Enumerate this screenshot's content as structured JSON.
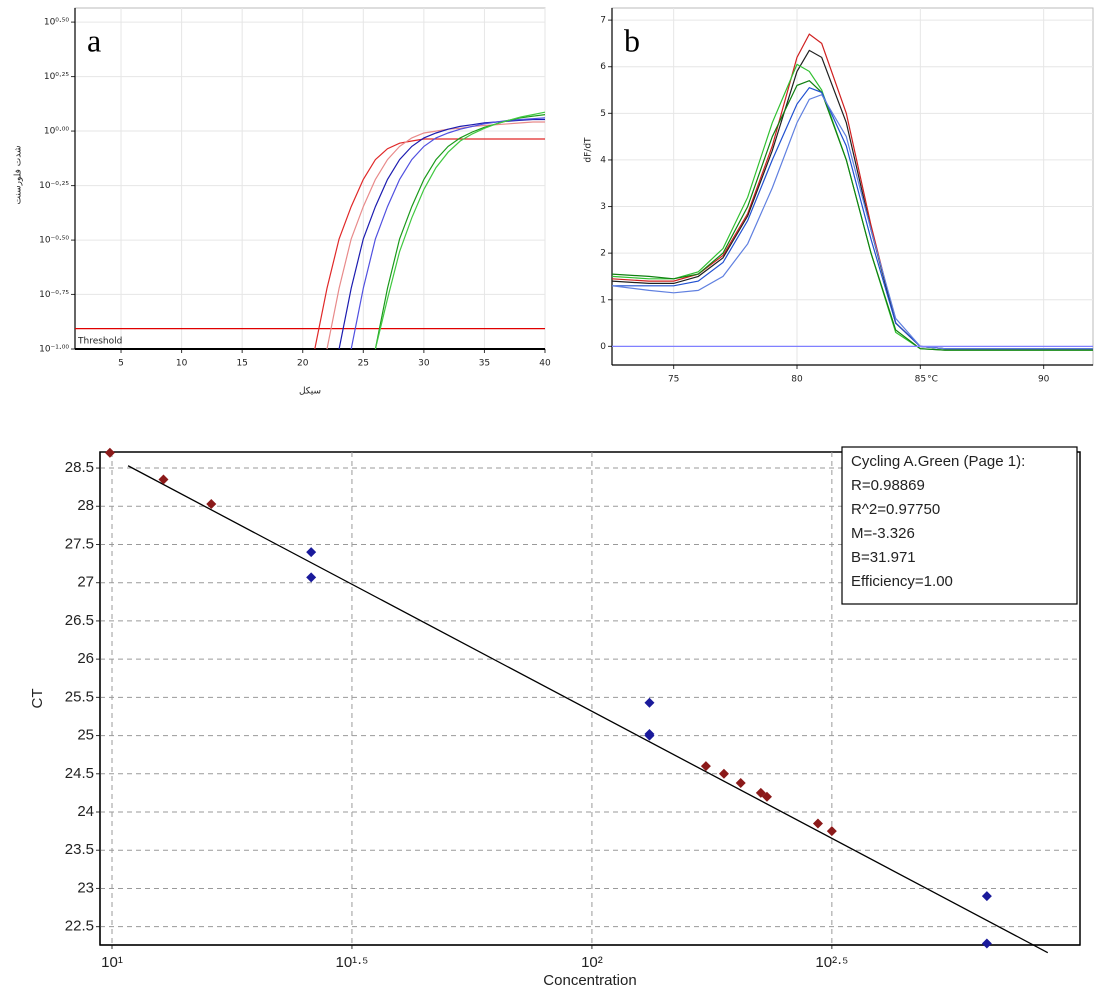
{
  "chart_data": [
    {
      "type": "line",
      "panel_label": "a",
      "xlabel": "سیکل",
      "ylabel": "شدت فلورسنت",
      "yscale": "log",
      "grid": true,
      "xlim": [
        1.2,
        40
      ],
      "xticks": [
        5,
        10,
        15,
        20,
        25,
        30,
        35,
        40
      ],
      "ylim": [
        0.1,
        3.67
      ],
      "yticks": [
        {
          "value": 0.1,
          "label": "10⁻¹·⁰⁰"
        },
        {
          "value": 0.178,
          "label": "10⁻⁰·⁷⁵"
        },
        {
          "value": 0.316,
          "label": "10⁻⁰·⁵⁰"
        },
        {
          "value": 0.562,
          "label": "10⁻⁰·²⁵"
        },
        {
          "value": 1,
          "label": "10⁰·⁰⁰"
        },
        {
          "value": 1.778,
          "label": "10⁰·²⁵"
        },
        {
          "value": 3.162,
          "label": "10⁰·⁵⁰"
        }
      ],
      "threshold": {
        "value": 0.124,
        "label": "Threshold",
        "color": "#e00000"
      },
      "x": [
        20,
        21,
        22,
        23,
        24,
        25,
        26,
        27,
        28,
        29,
        30,
        31,
        32,
        33,
        34,
        35,
        36,
        37,
        38,
        39,
        40
      ],
      "series": [
        {
          "color": "#e02828",
          "values": [
            null,
            0.1,
            0.19,
            0.32,
            0.45,
            0.6,
            0.74,
            0.83,
            0.88,
            0.9,
            0.92,
            0.92,
            0.92,
            0.92,
            0.92,
            0.92,
            0.92,
            0.92,
            0.92,
            0.92,
            0.92
          ]
        },
        {
          "color": "#e88a8a",
          "values": [
            null,
            null,
            0.1,
            0.19,
            0.32,
            0.45,
            0.6,
            0.74,
            0.85,
            0.93,
            0.98,
            1.0,
            1.02,
            1.03,
            1.05,
            1.06,
            1.07,
            1.08,
            1.09,
            1.1,
            1.1
          ]
        },
        {
          "color": "#1c1cb0",
          "values": [
            null,
            null,
            null,
            0.1,
            0.19,
            0.32,
            0.45,
            0.6,
            0.74,
            0.85,
            0.93,
            0.98,
            1.02,
            1.05,
            1.07,
            1.09,
            1.1,
            1.11,
            1.12,
            1.13,
            1.13
          ]
        },
        {
          "color": "#5050e0",
          "values": [
            null,
            null,
            null,
            null,
            0.1,
            0.19,
            0.32,
            0.45,
            0.6,
            0.74,
            0.85,
            0.93,
            0.98,
            1.02,
            1.05,
            1.08,
            1.1,
            1.12,
            1.13,
            1.14,
            1.15
          ]
        },
        {
          "color": "#1a9a1a",
          "values": [
            null,
            null,
            null,
            null,
            null,
            null,
            0.1,
            0.19,
            0.32,
            0.45,
            0.6,
            0.74,
            0.85,
            0.93,
            0.99,
            1.04,
            1.08,
            1.12,
            1.15,
            1.17,
            1.19
          ]
        },
        {
          "color": "#40c840",
          "values": [
            null,
            null,
            null,
            null,
            null,
            null,
            0.1,
            0.17,
            0.28,
            0.4,
            0.54,
            0.68,
            0.8,
            0.9,
            0.97,
            1.03,
            1.08,
            1.12,
            1.16,
            1.19,
            1.22
          ]
        }
      ]
    },
    {
      "type": "line",
      "panel_label": "b",
      "xlabel": "°C",
      "ylabel": "dF/dT",
      "grid": true,
      "xlim": [
        72.5,
        92
      ],
      "xticks": [
        75,
        80,
        85,
        90
      ],
      "ylim": [
        -0.4,
        7.26
      ],
      "yticks": [
        0,
        1,
        2,
        3,
        4,
        5,
        6,
        7
      ],
      "x": [
        72.5,
        74,
        75,
        76,
        77,
        78,
        79,
        80,
        80.5,
        81,
        82,
        83,
        84,
        85,
        86,
        88,
        90,
        92
      ],
      "series": [
        {
          "color": "#d02020",
          "values": [
            1.45,
            1.4,
            1.4,
            1.55,
            1.95,
            2.85,
            4.3,
            6.2,
            6.7,
            6.5,
            5.0,
            2.6,
            0.5,
            0.0,
            -0.05,
            -0.05,
            -0.05,
            -0.05
          ]
        },
        {
          "color": "#202020",
          "values": [
            1.4,
            1.35,
            1.35,
            1.5,
            1.9,
            2.8,
            4.2,
            5.9,
            6.35,
            6.2,
            4.8,
            2.5,
            0.5,
            0.0,
            -0.05,
            -0.05,
            -0.05,
            -0.05
          ]
        },
        {
          "color": "#30c030",
          "values": [
            1.5,
            1.45,
            1.45,
            1.6,
            2.1,
            3.2,
            4.8,
            6.05,
            5.9,
            5.5,
            4.0,
            2.0,
            0.3,
            -0.05,
            -0.08,
            -0.08,
            -0.08,
            -0.08
          ]
        },
        {
          "color": "#108010",
          "values": [
            1.55,
            1.5,
            1.45,
            1.55,
            2.0,
            3.0,
            4.5,
            5.6,
            5.7,
            5.45,
            4.0,
            2.0,
            0.35,
            -0.05,
            -0.08,
            -0.08,
            -0.08,
            -0.08
          ]
        },
        {
          "color": "#2050d0",
          "values": [
            1.3,
            1.3,
            1.3,
            1.4,
            1.8,
            2.7,
            4.0,
            5.2,
            5.55,
            5.45,
            4.3,
            2.3,
            0.5,
            0.0,
            -0.05,
            -0.05,
            -0.05,
            -0.05
          ]
        },
        {
          "color": "#6080e0",
          "values": [
            1.3,
            1.2,
            1.15,
            1.2,
            1.5,
            2.2,
            3.4,
            4.8,
            5.3,
            5.4,
            4.5,
            2.5,
            0.6,
            0.0,
            -0.05,
            -0.05,
            -0.05,
            -0.05
          ]
        },
        {
          "color": "#8080ff",
          "values": [
            0,
            0,
            0,
            0,
            0,
            0,
            0,
            0,
            0,
            0,
            0,
            0,
            0,
            0,
            0,
            0,
            0,
            0
          ]
        }
      ]
    },
    {
      "type": "scatter",
      "xlabel": "Concentration",
      "ylabel": "CT",
      "xscale": "log",
      "grid": true,
      "xlim": [
        9.44,
        1040
      ],
      "xticks": [
        {
          "value": 10,
          "label": "10¹"
        },
        {
          "value": 31.62,
          "label": "10¹·⁵"
        },
        {
          "value": 100,
          "label": "10²"
        },
        {
          "value": 316.2,
          "label": "10²·⁵"
        }
      ],
      "ylim": [
        22.26,
        28.71
      ],
      "yticks": [
        22.5,
        23,
        23.5,
        24,
        24.5,
        25,
        25.5,
        26,
        26.5,
        27,
        27.5,
        28,
        28.5
      ],
      "series": [
        {
          "color": "#8b1a1a",
          "x": [
            9.9,
            12.8,
            16.1,
            172.8,
            188.4,
            204.2,
            224.9,
            231.6,
            295.8,
            316.2
          ],
          "values": [
            28.7,
            28.35,
            28.03,
            24.6,
            24.5,
            24.38,
            24.25,
            24.2,
            23.85,
            23.75
          ]
        },
        {
          "color": "#1a1a9b",
          "x": [
            26.0,
            26.0,
            131.8,
            131.8,
            131.8,
            665.3,
            665.3
          ],
          "values": [
            27.4,
            27.07,
            25.43,
            25.02,
            25.0,
            22.9,
            22.28
          ]
        }
      ],
      "fit_line": {
        "color": "#000000",
        "x": [
          10.8,
          891
        ],
        "values": [
          28.53,
          22.16
        ]
      },
      "annotation": [
        "Cycling A.Green (Page 1):",
        "R=0.98869",
        "R^2=0.97750",
        "M=-3.326",
        "B=31.971",
        "Efficiency=1.00"
      ]
    }
  ]
}
